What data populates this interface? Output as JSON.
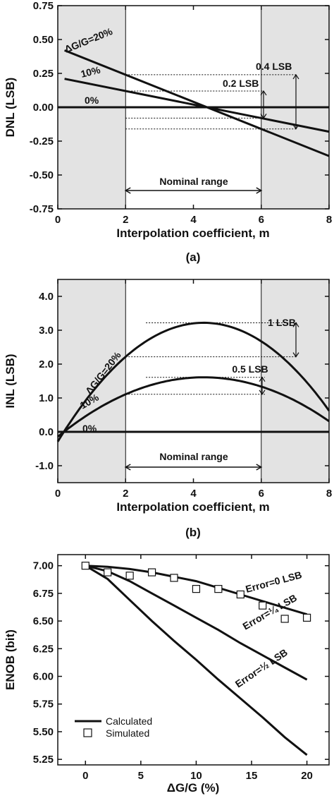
{
  "chart_data": [
    {
      "type": "line",
      "panel_label": "(a)",
      "xlabel": "Interpolation coefficient, m",
      "ylabel": "DNL (LSB)",
      "xlim": [
        0,
        8
      ],
      "ylim": [
        -0.75,
        0.75
      ],
      "xticks": [
        0,
        2,
        4,
        6,
        8
      ],
      "yticks": [
        0.75,
        0.5,
        0.25,
        0.0,
        -0.25,
        -0.5,
        -0.75
      ],
      "ytick_labels": [
        "0.75",
        "0.50",
        "0.25",
        "0.00",
        "-0.25",
        "-0.50",
        "-0.75"
      ],
      "shaded_ranges": [
        [
          0,
          2
        ],
        [
          6,
          8
        ]
      ],
      "series": [
        {
          "name": "ΔG/G=20%",
          "x": [
            0.2,
            8
          ],
          "y": [
            0.42,
            -0.36
          ]
        },
        {
          "name": "10%",
          "x": [
            0.2,
            8
          ],
          "y": [
            0.21,
            -0.18
          ]
        },
        {
          "name": "0%",
          "x": [
            0,
            8
          ],
          "y": [
            0.0,
            0.0
          ]
        }
      ],
      "annotations": {
        "big_arrow_label": "0.4 LSB",
        "small_arrow_label": "0.2 LSB",
        "nominal_label": "Nominal range"
      }
    },
    {
      "type": "line",
      "panel_label": "(b)",
      "xlabel": "Interpolation coefficient, m",
      "ylabel": "INL (LSB)",
      "xlim": [
        0,
        8
      ],
      "ylim": [
        -1.5,
        4.5
      ],
      "xticks": [
        0,
        2,
        4,
        6,
        8
      ],
      "yticks": [
        4.0,
        3.0,
        2.0,
        1.0,
        0.0,
        -1.0
      ],
      "ytick_labels": [
        "4.0",
        "3.0",
        "2.0",
        "1.0",
        "0.0",
        "-1.0"
      ],
      "shaded_ranges": [
        [
          0,
          2
        ],
        [
          6,
          8
        ]
      ],
      "series": [
        {
          "name": "ΔG/G=20%",
          "peak": [
            4.3,
            3.22
          ],
          "roots": [
            0.18,
            8.42
          ]
        },
        {
          "name": "10%",
          "peak": [
            4.3,
            1.61
          ],
          "roots": [
            0.18,
            8.42
          ]
        },
        {
          "name": "0%",
          "x": [
            0,
            8
          ],
          "y": [
            0.0,
            0.0
          ]
        }
      ],
      "annotations": {
        "big_arrow_label": "1 LSB",
        "small_arrow_label": "0.5 LSB",
        "nominal_label": "Nominal range"
      }
    },
    {
      "type": "line",
      "xlabel": "ΔG/G (%)",
      "ylabel": "ENOB (bit)",
      "xlim": [
        -2.5,
        22
      ],
      "ylim": [
        5.2,
        7.1
      ],
      "xticks": [
        0,
        5,
        10,
        15,
        20
      ],
      "yticks": [
        7.0,
        6.75,
        6.5,
        6.25,
        6.0,
        5.75,
        5.5,
        5.25
      ],
      "ytick_labels": [
        "7.00",
        "6.75",
        "6.50",
        "6.25",
        "6.00",
        "5.75",
        "5.50",
        "5.25"
      ],
      "series": [
        {
          "name": "Error=0 LSB",
          "x": [
            0,
            2,
            4,
            6,
            8,
            10,
            12,
            14,
            16,
            18,
            20
          ],
          "y": [
            7.0,
            6.99,
            6.97,
            6.94,
            6.9,
            6.86,
            6.8,
            6.74,
            6.68,
            6.62,
            6.56
          ]
        },
        {
          "name": "Error=¼ LSB",
          "x": [
            0,
            2,
            4,
            6,
            8,
            10,
            12,
            14,
            16,
            18,
            20
          ],
          "y": [
            7.0,
            6.95,
            6.86,
            6.75,
            6.64,
            6.53,
            6.42,
            6.3,
            6.19,
            6.08,
            5.97
          ]
        },
        {
          "name": "Error=½ LSB",
          "x": [
            0,
            2,
            4,
            6,
            8,
            10,
            12,
            14,
            16,
            18,
            20
          ],
          "y": [
            7.0,
            6.88,
            6.69,
            6.5,
            6.32,
            6.15,
            5.97,
            5.8,
            5.63,
            5.45,
            5.29
          ]
        },
        {
          "name": "Simulated",
          "x": [
            0,
            2,
            4,
            6,
            8,
            10,
            12,
            14,
            16,
            18,
            20
          ],
          "y": [
            7.0,
            6.94,
            6.91,
            6.94,
            6.89,
            6.79,
            6.79,
            6.74,
            6.64,
            6.52,
            6.53
          ]
        }
      ],
      "legend": {
        "placement": "bottom-left",
        "entries": [
          "Calculated",
          "Simulated"
        ]
      }
    }
  ]
}
